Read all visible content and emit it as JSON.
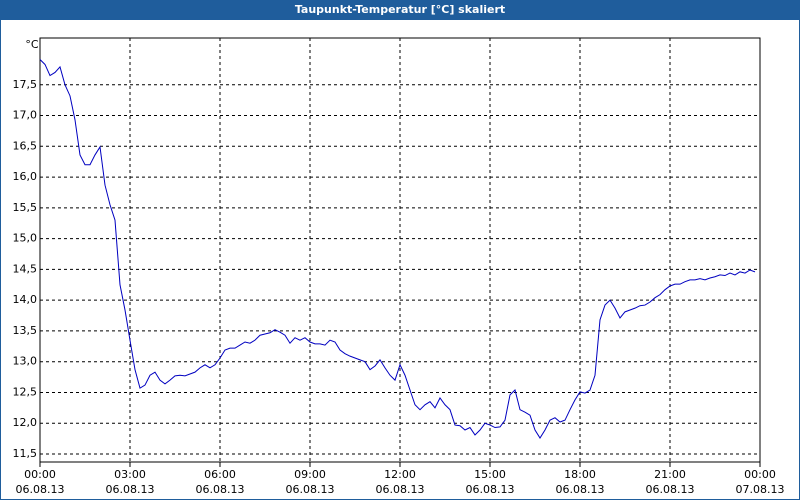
{
  "chart_data": {
    "type": "line",
    "title": "Taupunkt-Temperatur [°C] skaliert",
    "y_unit": "°C",
    "xlim": [
      0,
      1440
    ],
    "xticks": [
      {
        "value": 0,
        "label": "00:00"
      },
      {
        "value": 180,
        "label": "03:00"
      },
      {
        "value": 360,
        "label": "06:00"
      },
      {
        "value": 540,
        "label": "09:00"
      },
      {
        "value": 720,
        "label": "12:00"
      },
      {
        "value": 900,
        "label": "15:00"
      },
      {
        "value": 1080,
        "label": "18:00"
      },
      {
        "value": 1260,
        "label": "21:00"
      },
      {
        "value": 1440,
        "label": "00:00"
      }
    ],
    "xtick_dates": [
      "06.08.13",
      "06.08.13",
      "06.08.13",
      "06.08.13",
      "06.08.13",
      "06.08.13",
      "06.08.13",
      "06.08.13",
      "07.08.13"
    ],
    "ylim": [
      11.37,
      18.26
    ],
    "yticks": [
      {
        "value": 11.5,
        "label": "11,5"
      },
      {
        "value": 12,
        "label": "12,0"
      },
      {
        "value": 12.5,
        "label": "12,5"
      },
      {
        "value": 13,
        "label": "13,0"
      },
      {
        "value": 13.5,
        "label": "13,5"
      },
      {
        "value": 14,
        "label": "14,0"
      },
      {
        "value": 14.5,
        "label": "14,5"
      },
      {
        "value": 15,
        "label": "15,0"
      },
      {
        "value": 15.5,
        "label": "15,5"
      },
      {
        "value": 16,
        "label": "16,0"
      },
      {
        "value": 16.5,
        "label": "16,5"
      },
      {
        "value": 17,
        "label": "17,0"
      },
      {
        "value": 17.5,
        "label": "17,5"
      }
    ],
    "grid": true,
    "x": [
      0,
      10,
      20,
      30,
      40,
      50,
      60,
      70,
      80,
      90,
      100,
      110,
      120,
      130,
      140,
      150,
      160,
      170,
      180,
      190,
      200,
      210,
      220,
      230,
      240,
      250,
      260,
      270,
      280,
      290,
      300,
      310,
      320,
      330,
      340,
      350,
      360,
      370,
      380,
      390,
      400,
      410,
      420,
      430,
      440,
      450,
      460,
      470,
      480,
      490,
      500,
      510,
      520,
      530,
      540,
      550,
      560,
      570,
      580,
      590,
      600,
      610,
      620,
      630,
      640,
      650,
      660,
      670,
      680,
      690,
      700,
      710,
      720,
      730,
      740,
      750,
      760,
      770,
      780,
      790,
      800,
      810,
      820,
      830,
      840,
      850,
      860,
      870,
      880,
      890,
      900,
      910,
      920,
      930,
      940,
      950,
      960,
      970,
      980,
      990,
      1000,
      1010,
      1020,
      1030,
      1040,
      1050,
      1060,
      1070,
      1080,
      1090,
      1100,
      1110,
      1120,
      1130,
      1140,
      1150,
      1160,
      1170,
      1180,
      1190,
      1200,
      1210,
      1220,
      1230,
      1240,
      1250,
      1260,
      1270,
      1280,
      1290,
      1300,
      1310,
      1320,
      1330,
      1340,
      1350,
      1360,
      1370,
      1380,
      1390,
      1400,
      1410,
      1420,
      1430
    ],
    "series": [
      {
        "color": "#0000c0",
        "values": [
          17.91,
          17.83,
          17.65,
          17.7,
          17.79,
          17.5,
          17.32,
          16.93,
          16.36,
          16.2,
          16.2,
          16.36,
          16.49,
          15.87,
          15.55,
          15.3,
          14.25,
          13.84,
          13.35,
          12.87,
          12.57,
          12.62,
          12.78,
          12.83,
          12.7,
          12.64,
          12.7,
          12.77,
          12.78,
          12.77,
          12.8,
          12.83,
          12.9,
          12.95,
          12.9,
          12.95,
          13.06,
          13.19,
          13.22,
          13.22,
          13.27,
          13.32,
          13.3,
          13.35,
          13.43,
          13.45,
          13.47,
          13.52,
          13.48,
          13.43,
          13.3,
          13.39,
          13.35,
          13.39,
          13.32,
          13.29,
          13.29,
          13.27,
          13.35,
          13.32,
          13.19,
          13.13,
          13.09,
          13.06,
          13.03,
          13.0,
          12.87,
          12.93,
          13.03,
          12.9,
          12.78,
          12.7,
          12.95,
          12.78,
          12.54,
          12.3,
          12.22,
          12.3,
          12.35,
          12.25,
          12.41,
          12.3,
          12.22,
          11.97,
          11.96,
          11.89,
          11.93,
          11.81,
          11.89,
          12.0,
          11.97,
          11.93,
          11.94,
          12.05,
          12.46,
          12.54,
          12.22,
          12.18,
          12.13,
          11.89,
          11.76,
          11.89,
          12.05,
          12.09,
          12.02,
          12.05,
          12.22,
          12.38,
          12.51,
          12.49,
          12.54,
          12.78,
          13.68,
          13.92,
          14.0,
          13.87,
          13.71,
          13.81,
          13.84,
          13.87,
          13.91,
          13.92,
          13.97,
          14.04,
          14.09,
          14.17,
          14.23,
          14.26,
          14.26,
          14.3,
          14.33,
          14.33,
          14.35,
          14.33,
          14.36,
          14.38,
          14.41,
          14.4,
          14.44,
          14.41,
          14.46,
          14.44,
          14.49,
          14.46
        ]
      }
    ]
  }
}
